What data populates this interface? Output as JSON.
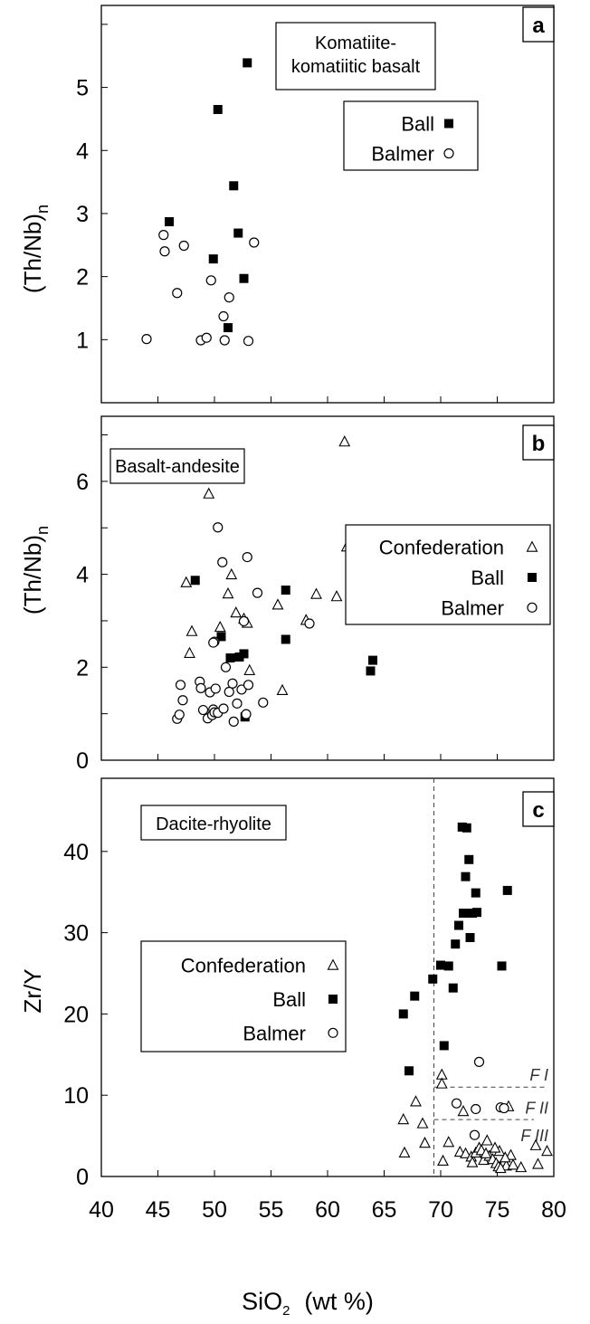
{
  "chart_data": [
    {
      "panel": "a",
      "type": "scatter",
      "panel_label": "a",
      "title": "Komatiite-\nkomatiitic basalt",
      "ylabel": "(Th/Nb)",
      "ylabel_sub": "n",
      "xlim": [
        40,
        80
      ],
      "ylim": [
        0,
        6.3
      ],
      "yticks": [
        1,
        2,
        3,
        4,
        5
      ],
      "legend": {
        "position": "top-right"
      },
      "series": [
        {
          "name": "Ball",
          "marker": "filled-square",
          "x": [
            46.0,
            49.9,
            50.3,
            51.7,
            52.1,
            52.6,
            52.9,
            51.2
          ],
          "y": [
            2.87,
            2.28,
            4.65,
            3.44,
            2.69,
            1.97,
            5.39,
            1.19
          ]
        },
        {
          "name": "Balmer",
          "marker": "open-circle",
          "x": [
            44.0,
            45.5,
            45.6,
            46.7,
            47.3,
            48.8,
            49.3,
            49.7,
            50.9,
            50.8,
            51.3,
            53.0,
            53.5
          ],
          "y": [
            1.01,
            2.66,
            2.4,
            1.74,
            2.49,
            0.99,
            1.03,
            1.94,
            0.99,
            1.37,
            1.67,
            0.98,
            2.54
          ]
        }
      ]
    },
    {
      "panel": "b",
      "type": "scatter",
      "panel_label": "b",
      "title": "Basalt-andesite",
      "ylabel": "(Th/Nb)",
      "ylabel_sub": "n",
      "xlim": [
        40,
        80
      ],
      "ylim": [
        0,
        7.4
      ],
      "yticks": [
        0,
        2,
        4,
        6
      ],
      "legend": {
        "position": "top-right"
      },
      "series": [
        {
          "name": "Confederation",
          "marker": "open-triangle",
          "x": [
            47.5,
            47.8,
            48.0,
            49.5,
            50.5,
            51.2,
            51.5,
            51.9,
            52.6,
            52.9,
            53.1,
            55.6,
            56.0,
            58.1,
            59.0,
            60.8,
            61.5,
            61.7,
            65.0
          ],
          "y": [
            3.82,
            2.3,
            2.77,
            5.73,
            2.86,
            3.58,
            3.99,
            3.17,
            3.04,
            2.95,
            1.93,
            3.34,
            1.5,
            3.01,
            3.57,
            3.52,
            6.85,
            4.59,
            3.01
          ]
        },
        {
          "name": "Ball",
          "marker": "filled-square",
          "x": [
            48.3,
            50.6,
            51.4,
            52.2,
            52.6,
            52.7,
            56.3,
            56.3,
            62.8,
            63.8,
            64.0
          ],
          "y": [
            3.87,
            2.66,
            2.2,
            2.22,
            2.29,
            0.93,
            3.66,
            2.6,
            3.91,
            1.92,
            2.15
          ]
        },
        {
          "name": "Balmer",
          "marker": "open-circle",
          "x": [
            46.7,
            46.9,
            47.0,
            47.2,
            48.7,
            48.8,
            49.0,
            49.4,
            49.6,
            49.8,
            49.9,
            50.0,
            50.1,
            50.3,
            50.7,
            51.0,
            51.3,
            51.6,
            51.7,
            52.0,
            52.4,
            52.6,
            52.9,
            53.0,
            53.8,
            54.3,
            58.4,
            50.3,
            50.8,
            52.8,
            50.0,
            49.9
          ],
          "y": [
            0.89,
            0.98,
            1.62,
            1.29,
            1.69,
            1.55,
            1.08,
            0.9,
            1.46,
            0.97,
            1.09,
            1.03,
            1.54,
            5.01,
            4.26,
            2.0,
            1.47,
            1.65,
            0.83,
            1.22,
            1.52,
            2.99,
            4.37,
            1.62,
            3.6,
            1.24,
            2.94,
            1.02,
            1.11,
            0.99,
            2.55,
            2.53
          ]
        }
      ]
    },
    {
      "panel": "c",
      "type": "scatter",
      "panel_label": "c",
      "title": "Dacite-rhyolite",
      "ylabel": "Zr/Y",
      "xlabel": "SiO",
      "xlabel_sub": "2",
      "xlabel_unit": "(wt %)",
      "xlim": [
        40,
        80
      ],
      "ylim": [
        0,
        49
      ],
      "xticks": [
        40,
        45,
        50,
        55,
        60,
        65,
        70,
        75,
        80
      ],
      "yticks": [
        0,
        10,
        20,
        30,
        40
      ],
      "legend": {
        "position": "top-left"
      },
      "reference_lines": {
        "vertical_x": 69.4,
        "fields": [
          {
            "label": "F I",
            "y": 11.0
          },
          {
            "label": "F II",
            "y": 7.0
          },
          {
            "label": "F III",
            "y": 7.0
          }
        ]
      },
      "series": [
        {
          "name": "Confederation",
          "marker": "open-triangle",
          "x": [
            66.7,
            66.8,
            67.8,
            68.4,
            68.6,
            70.1,
            70.1,
            70.2,
            70.7,
            71.7,
            72.0,
            72.2,
            72.7,
            73.1,
            73.4,
            73.8,
            74.1,
            74.3,
            74.6,
            74.9,
            75.2,
            75.4,
            75.6,
            75.8,
            76.0,
            76.2,
            75.1,
            74.8,
            75.3,
            75.7,
            76.4,
            77.1,
            78.4,
            78.6,
            79.4,
            73.6,
            72.8,
            74.0
          ],
          "y": [
            7.0,
            2.9,
            9.2,
            6.5,
            4.1,
            12.5,
            11.4,
            1.9,
            4.2,
            3.0,
            8.0,
            2.8,
            2.4,
            2.9,
            3.5,
            2.0,
            4.4,
            2.5,
            2.1,
            1.6,
            3.1,
            1.5,
            1.8,
            1.3,
            8.6,
            2.6,
            1.2,
            3.5,
            1.0,
            2.3,
            1.4,
            1.1,
            3.8,
            1.5,
            3.1,
            3.2,
            1.7,
            2.8
          ]
        },
        {
          "name": "Ball",
          "marker": "filled-square",
          "x": [
            66.7,
            67.2,
            67.7,
            69.3,
            70.0,
            70.3,
            70.7,
            71.1,
            71.3,
            71.6,
            71.9,
            72.0,
            72.2,
            72.3,
            72.5,
            72.6,
            72.8,
            73.1,
            73.2,
            75.4,
            75.9
          ],
          "y": [
            20.0,
            13.0,
            22.2,
            24.3,
            26.0,
            16.1,
            25.9,
            23.2,
            28.6,
            30.9,
            43.0,
            32.4,
            36.9,
            42.9,
            39.0,
            29.4,
            32.4,
            34.9,
            32.5,
            25.9,
            35.2
          ]
        },
        {
          "name": "Balmer",
          "marker": "open-circle",
          "x": [
            71.4,
            73.0,
            73.1,
            73.4,
            75.3,
            75.6
          ],
          "y": [
            9.0,
            5.1,
            8.3,
            14.1,
            8.5,
            8.4
          ]
        }
      ]
    }
  ]
}
